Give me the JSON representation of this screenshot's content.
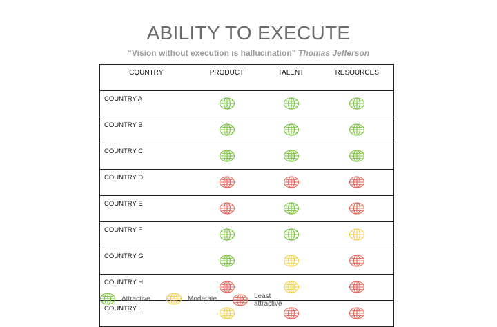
{
  "title": "ABILITY TO EXECUTE",
  "quote": {
    "text": "“Vision without execution is hallucination”",
    "author": "Thomas Jefferson"
  },
  "colors": {
    "attractive": "#7dc243",
    "moderate": "#f1d155",
    "least_attractive": "#e06a5c"
  },
  "table": {
    "headers": [
      "COUNTRY",
      "PRODUCT",
      "TALENT",
      "RESOURCES"
    ],
    "rows": [
      {
        "country": "COUNTRY A",
        "ratings": [
          "attractive",
          "attractive",
          "attractive"
        ]
      },
      {
        "country": "COUNTRY B",
        "ratings": [
          "attractive",
          "attractive",
          "attractive"
        ]
      },
      {
        "country": "COUNTRY C",
        "ratings": [
          "attractive",
          "attractive",
          "attractive"
        ]
      },
      {
        "country": "COUNTRY D",
        "ratings": [
          "least_attractive",
          "least_attractive",
          "least_attractive"
        ]
      },
      {
        "country": "COUNTRY E",
        "ratings": [
          "least_attractive",
          "attractive",
          "least_attractive"
        ]
      },
      {
        "country": "COUNTRY F",
        "ratings": [
          "attractive",
          "attractive",
          "moderate"
        ]
      },
      {
        "country": "COUNTRY G",
        "ratings": [
          "attractive",
          "moderate",
          "least_attractive"
        ]
      },
      {
        "country": "COUNTRY H",
        "ratings": [
          "least_attractive",
          "moderate",
          "least_attractive"
        ]
      },
      {
        "country": "COUNTRY I",
        "ratings": [
          "moderate",
          "least_attractive",
          "least_attractive"
        ]
      }
    ]
  },
  "legend": [
    {
      "key": "attractive",
      "label": "Attractive"
    },
    {
      "key": "moderate",
      "label": "Moderate"
    },
    {
      "key": "least_attractive",
      "label": "Least attractive"
    }
  ]
}
